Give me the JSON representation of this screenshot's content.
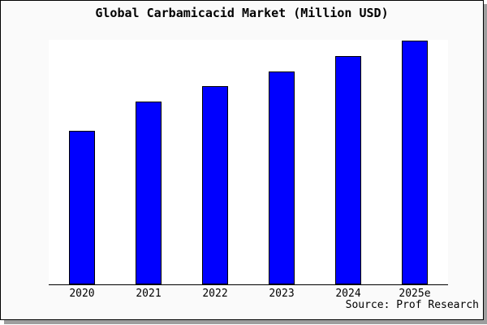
{
  "chart_data": {
    "type": "bar",
    "title": "Global Carbamicacid Market (Million USD)",
    "categories": [
      "2020",
      "2021",
      "2022",
      "2023",
      "2024",
      "2025e"
    ],
    "values": [
      189,
      225,
      244,
      262,
      281,
      300
    ],
    "ylim": [
      0,
      301
    ],
    "xlabel": "",
    "ylabel": "",
    "y_axis_labels_visible": false,
    "gridlines": false,
    "legend_visible": false,
    "bar_color": "#0000ff",
    "bar_border_color": "#000000",
    "note": "No y-axis scale shown in source image; values are relative heights"
  },
  "source": {
    "text": "Source: Prof Research"
  },
  "colors": {
    "card_background": "#fafafa",
    "plot_background": "#ffffff",
    "frame_border": "#000000",
    "shadow": "#9e9e9e",
    "text": "#000000"
  }
}
